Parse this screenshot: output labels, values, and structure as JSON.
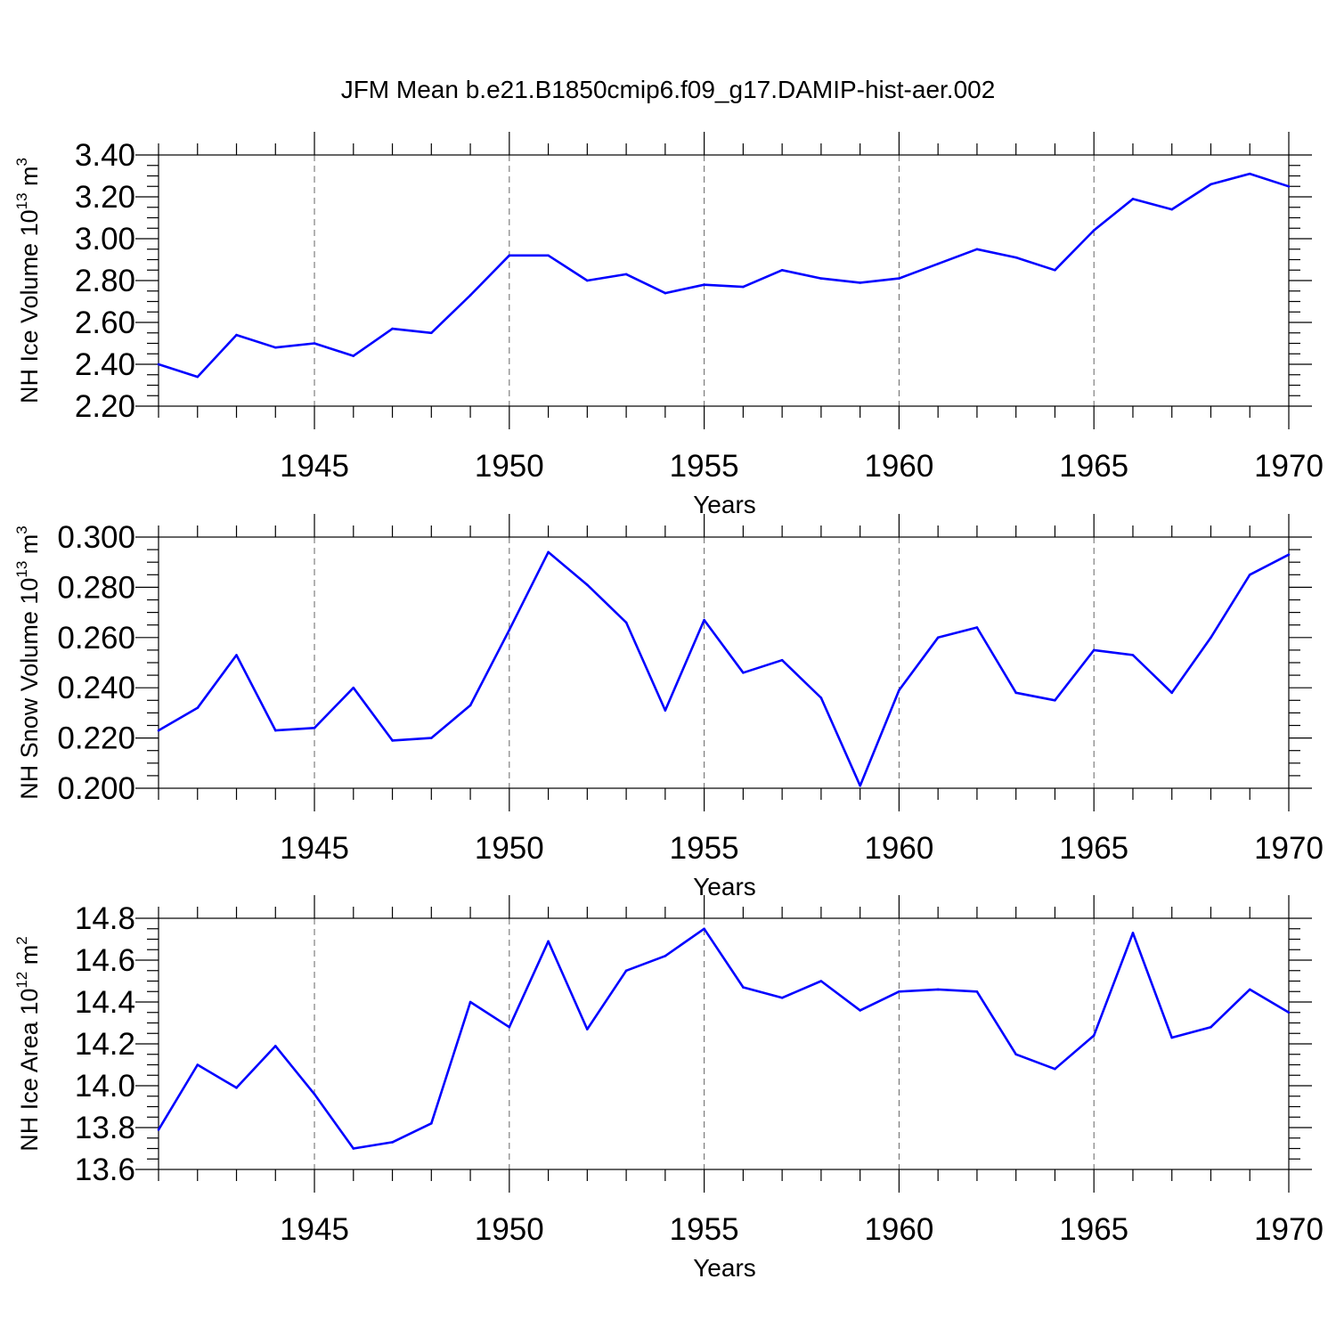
{
  "title": "JFM Mean b.e21.B1850cmip6.f09_g17.DAMIP-hist-aer.002",
  "line_color": "#0000ff",
  "chart_data": [
    {
      "type": "line",
      "ylabel_main": "NH Ice Volume 10",
      "ylabel_exp": "13",
      "ylabel_unit": " m",
      "ylabel_unit_exp": "3",
      "xlabel": "Years",
      "xlim": [
        1941,
        1970
      ],
      "ylim": [
        2.2,
        3.4
      ],
      "yticks": [
        2.2,
        2.4,
        2.6,
        2.8,
        3.0,
        3.2,
        3.4
      ],
      "ytick_labels": [
        "2.20",
        "2.40",
        "2.60",
        "2.80",
        "3.00",
        "3.20",
        "3.40"
      ],
      "xticks": [
        1945,
        1950,
        1955,
        1960,
        1965,
        1970
      ],
      "xtick_labels": [
        "1945",
        "1950",
        "1955",
        "1960",
        "1965",
        "1970"
      ],
      "grid": "dashed vertical at major x ticks",
      "x": [
        1941,
        1942,
        1943,
        1944,
        1945,
        1946,
        1947,
        1948,
        1949,
        1950,
        1951,
        1952,
        1953,
        1954,
        1955,
        1956,
        1957,
        1958,
        1959,
        1960,
        1961,
        1962,
        1963,
        1964,
        1965,
        1966,
        1967,
        1968,
        1969,
        1970
      ],
      "values": [
        2.4,
        2.34,
        2.54,
        2.48,
        2.5,
        2.44,
        2.57,
        2.55,
        2.73,
        2.92,
        2.92,
        2.8,
        2.83,
        2.74,
        2.78,
        2.77,
        2.85,
        2.81,
        2.79,
        2.81,
        2.88,
        2.95,
        2.91,
        2.85,
        3.04,
        3.19,
        3.14,
        3.26,
        3.31,
        3.25
      ]
    },
    {
      "type": "line",
      "ylabel_main": "NH Snow Volume 10",
      "ylabel_exp": "13",
      "ylabel_unit": " m",
      "ylabel_unit_exp": "3",
      "xlabel": "Years",
      "xlim": [
        1941,
        1970
      ],
      "ylim": [
        0.2,
        0.3
      ],
      "yticks": [
        0.2,
        0.22,
        0.24,
        0.26,
        0.28,
        0.3
      ],
      "ytick_labels": [
        "0.200",
        "0.220",
        "0.240",
        "0.260",
        "0.280",
        "0.300"
      ],
      "xticks": [
        1945,
        1950,
        1955,
        1960,
        1965,
        1970
      ],
      "xtick_labels": [
        "1945",
        "1950",
        "1955",
        "1960",
        "1965",
        "1970"
      ],
      "grid": "dashed vertical at major x ticks",
      "x": [
        1941,
        1942,
        1943,
        1944,
        1945,
        1946,
        1947,
        1948,
        1949,
        1950,
        1951,
        1952,
        1953,
        1954,
        1955,
        1956,
        1957,
        1958,
        1959,
        1960,
        1961,
        1962,
        1963,
        1964,
        1965,
        1966,
        1967,
        1968,
        1969,
        1970
      ],
      "values": [
        0.223,
        0.232,
        0.253,
        0.223,
        0.224,
        0.24,
        0.219,
        0.22,
        0.233,
        0.263,
        0.294,
        0.281,
        0.266,
        0.231,
        0.267,
        0.246,
        0.251,
        0.236,
        0.201,
        0.239,
        0.26,
        0.264,
        0.238,
        0.235,
        0.255,
        0.253,
        0.238,
        0.26,
        0.285,
        0.293
      ]
    },
    {
      "type": "line",
      "ylabel_main": "NH Ice Area 10",
      "ylabel_exp": "12",
      "ylabel_unit": " m",
      "ylabel_unit_exp": "2",
      "xlabel": "Years",
      "xlim": [
        1941,
        1970
      ],
      "ylim": [
        13.6,
        14.8
      ],
      "yticks": [
        13.6,
        13.8,
        14.0,
        14.2,
        14.4,
        14.6,
        14.8
      ],
      "ytick_labels": [
        "13.6",
        "13.8",
        "14.0",
        "14.2",
        "14.4",
        "14.6",
        "14.8"
      ],
      "xticks": [
        1945,
        1950,
        1955,
        1960,
        1965,
        1970
      ],
      "xtick_labels": [
        "1945",
        "1950",
        "1955",
        "1960",
        "1965",
        "1970"
      ],
      "grid": "dashed vertical at major x ticks",
      "x": [
        1941,
        1942,
        1943,
        1944,
        1945,
        1946,
        1947,
        1948,
        1949,
        1950,
        1951,
        1952,
        1953,
        1954,
        1955,
        1956,
        1957,
        1958,
        1959,
        1960,
        1961,
        1962,
        1963,
        1964,
        1965,
        1966,
        1967,
        1968,
        1969,
        1970
      ],
      "values": [
        13.79,
        14.1,
        13.99,
        14.19,
        13.96,
        13.7,
        13.73,
        13.82,
        14.4,
        14.28,
        14.69,
        14.27,
        14.55,
        14.62,
        14.75,
        14.47,
        14.42,
        14.5,
        14.36,
        14.45,
        14.46,
        14.45,
        14.15,
        14.08,
        14.24,
        14.73,
        14.23,
        14.28,
        14.46,
        14.35
      ]
    }
  ]
}
